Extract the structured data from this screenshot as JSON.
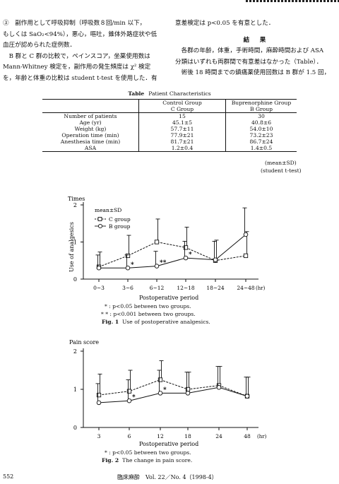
{
  "body_text": {
    "left": [
      "③　副作用として呼吸抑制（呼吸数８回/min 以下，",
      "もしくは SaO₂<94%），悪心，嘔吐，錐体外路症状や低",
      "血圧が認められた症例数．",
      "　B 群と C 群の比較で，ペインスコア，坐薬使用数は",
      "Mann-Whitney 検定を，副作用の発生頻度は χ² 検定",
      "を，年齢と体重の比較は student t-test を使用した．有"
    ],
    "right_top": "意差検定は p<0.05 を有意とした．",
    "results_heading": "結　果",
    "right_body": [
      "　各群の年齢，体重，手術時間，麻酔時間および ASA",
      "分類はいずれも両群間で有意差はなかった（Table）．",
      "　術後 18 時間までの鎮痛薬使用回数は B 群が 1.5 回，"
    ]
  },
  "table": {
    "label": "Table",
    "title": "Patient Characteristics",
    "col1": [
      "Control Group",
      "C Group"
    ],
    "col2": [
      "Buprenorphine Group",
      "B Group"
    ],
    "rows": [
      {
        "name": "Number of patients",
        "c": "15",
        "b": "30"
      },
      {
        "name": "Age (yr)",
        "c": "45.1±5",
        "b": "40.8±6"
      },
      {
        "name": "Weight (kg)",
        "c": "57.7±11",
        "b": "54.0±10"
      },
      {
        "name": "Operation time (min)",
        "c": "77.9±21",
        "b": "73.2±23"
      },
      {
        "name": "Anesthesia time (min)",
        "c": "81.7±21",
        "b": "86.7±24"
      },
      {
        "name": "ASA",
        "c": "1.2±0.4",
        "b": "1.4±0.5"
      }
    ],
    "notes": [
      "(mean±SD)",
      "(student t-test)"
    ]
  },
  "chart_data": [
    {
      "type": "line",
      "ylabel_top": "Times",
      "ylabel": "Use of analgesics",
      "xlabel": "Postoperative period",
      "x_unit": "(hr)",
      "categories": [
        "0~3",
        "3~6",
        "6~12",
        "12~18",
        "18~24",
        "24~48"
      ],
      "ylim": [
        0,
        2
      ],
      "yticks": [
        "0",
        "1",
        "2"
      ],
      "legend": [
        "mean±SD",
        "C group",
        "B group"
      ],
      "series": [
        {
          "name": "C group",
          "marker": "square",
          "values": [
            0.33,
            0.63,
            1.0,
            0.85,
            0.5,
            0.63
          ],
          "sd": [
            0.4,
            0.55,
            0.62,
            0.55,
            0.55,
            0.65
          ]
        },
        {
          "name": "B group",
          "marker": "circle",
          "values": [
            0.3,
            0.3,
            0.35,
            0.57,
            0.52,
            1.2
          ],
          "sd": [
            0.35,
            0.35,
            0.4,
            0.45,
            0.5,
            0.72
          ]
        }
      ],
      "annotations": [
        {
          "x": "3~6",
          "text": "*"
        },
        {
          "x": "6~12",
          "text": "**"
        },
        {
          "x": "12~18",
          "text": "*"
        }
      ],
      "footnotes": [
        "* : p<0.05 between two groups.",
        "* * : p<0.001 between two groups."
      ],
      "caption_label": "Fig. 1",
      "caption": "Use of postoperative analgesics."
    },
    {
      "type": "line",
      "ylabel_top": "Pain score",
      "xlabel": "Postoperative period",
      "x_unit": "(hr)",
      "categories": [
        "3",
        "6",
        "12",
        "18",
        "24",
        "48"
      ],
      "ylim": [
        0,
        2
      ],
      "yticks": [
        "0",
        "1",
        "2"
      ],
      "series": [
        {
          "name": "C group",
          "marker": "square",
          "values": [
            0.85,
            0.95,
            1.25,
            1.0,
            1.1,
            0.82
          ],
          "sd": [
            0.55,
            0.55,
            0.5,
            0.45,
            0.5,
            0.5
          ]
        },
        {
          "name": "B group",
          "marker": "circle",
          "values": [
            0.65,
            0.7,
            0.9,
            0.9,
            1.05,
            0.82
          ],
          "sd": [
            0.5,
            0.55,
            0.6,
            0.55,
            0.55,
            0.5
          ]
        }
      ],
      "annotations": [
        {
          "x": "6",
          "text": "*"
        },
        {
          "x": "12",
          "text": "*"
        }
      ],
      "footnotes": [
        "* : p<0.05 between two groups."
      ],
      "caption_label": "Fig. 2",
      "caption": "The change in pain score."
    }
  ],
  "footer": {
    "page": "552",
    "journal": "臨床麻酔　Vol. 22／No. 4（1998-4）"
  }
}
